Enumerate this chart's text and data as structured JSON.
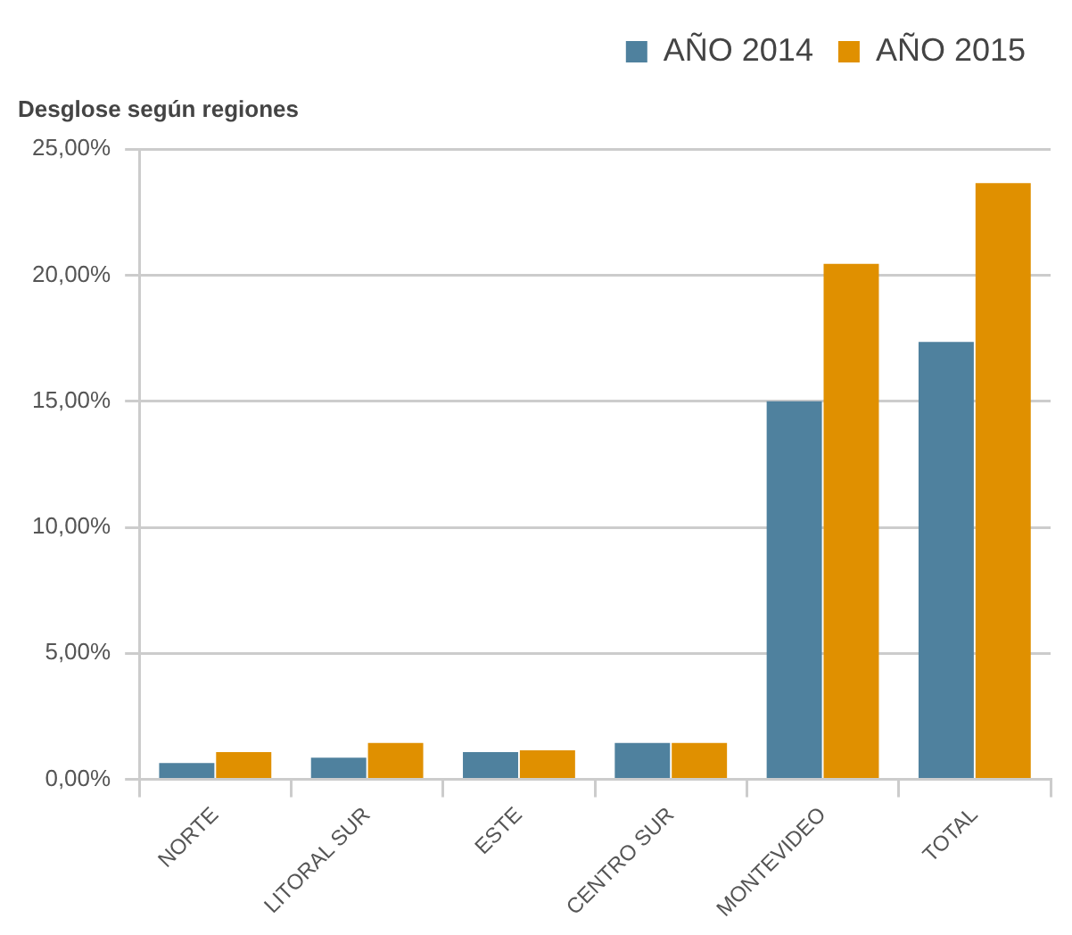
{
  "chart_data": {
    "type": "bar",
    "title": "Desglose según regiones",
    "categories": [
      "NORTE",
      "LITORAL SUR",
      "ESTE",
      "CENTRO SUR",
      "MONTEVIDEO",
      "TOTAL"
    ],
    "series": [
      {
        "name": "AÑO 2014",
        "color": "#4f819e",
        "values": [
          0.65,
          0.86,
          1.08,
          1.44,
          15.0,
          17.35
        ]
      },
      {
        "name": "AÑO 2015",
        "color": "#e09000",
        "values": [
          1.08,
          1.44,
          1.15,
          1.44,
          20.45,
          23.65
        ]
      }
    ],
    "ylim": [
      0,
      25
    ],
    "yticks": [
      {
        "value": 0,
        "label": "0,00%"
      },
      {
        "value": 5,
        "label": "5,00%"
      },
      {
        "value": 10,
        "label": "10,00%"
      },
      {
        "value": 15,
        "label": "15,00%"
      },
      {
        "value": 20,
        "label": "20,00%"
      },
      {
        "value": 25,
        "label": "25,00%"
      }
    ],
    "grid": "y",
    "legend": "top right"
  }
}
